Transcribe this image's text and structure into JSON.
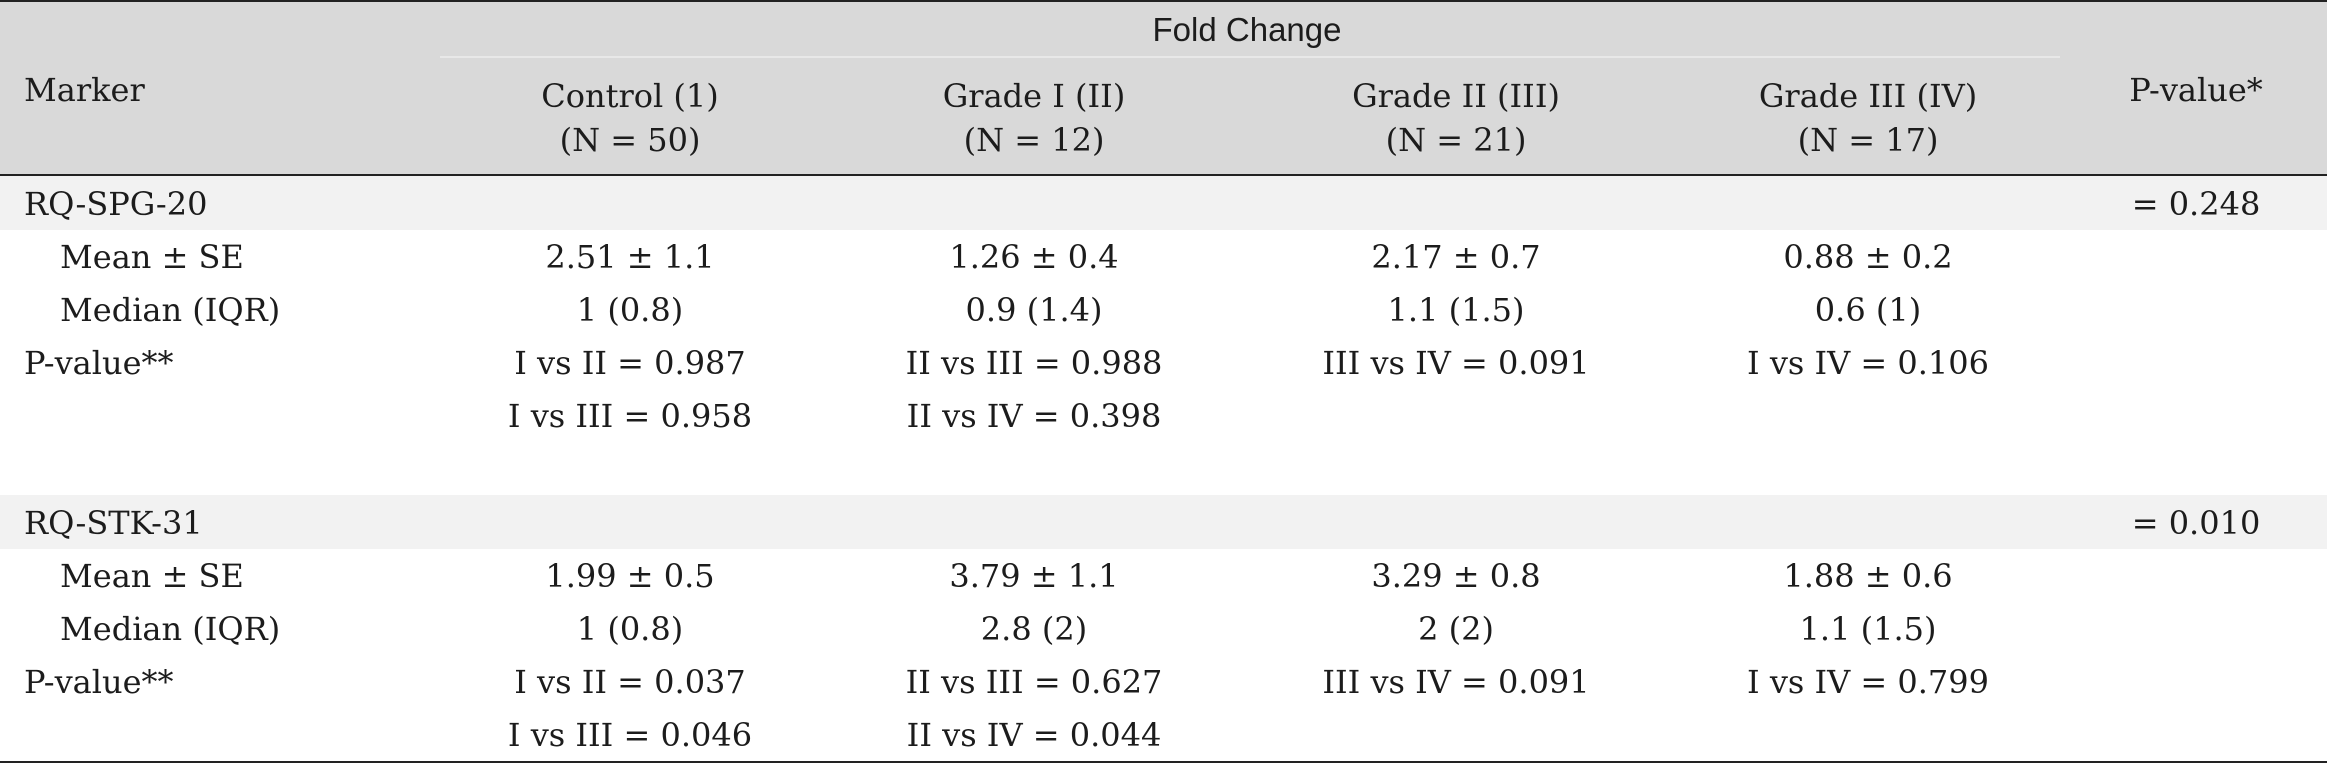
{
  "header": {
    "group": "Fold Change",
    "marker": "Marker",
    "pvalue": "P-value*",
    "columns": [
      {
        "line1": "Control (1)",
        "line2": "(N = 50)"
      },
      {
        "line1": "Grade I (II)",
        "line2": "(N = 12)"
      },
      {
        "line1": "Grade II (III)",
        "line2": "(N = 21)"
      },
      {
        "line1": "Grade III (IV)",
        "line2": "(N = 17)"
      }
    ]
  },
  "sections": [
    {
      "name": "RQ-SPG-20",
      "pvalue": "= 0.248",
      "mean_label": "Mean ± SE",
      "mean": [
        "2.51 ± 1.1",
        "1.26 ± 0.4",
        "2.17 ± 0.7",
        "0.88 ± 0.2"
      ],
      "median_label": "Median (IQR)",
      "median": [
        "1 (0.8)",
        "0.9 (1.4)",
        "1.1 (1.5)",
        "0.6 (1)"
      ],
      "pv_label": "P-value**",
      "pv_row1": [
        "I vs II = 0.987",
        "II vs III = 0.988",
        "III vs IV = 0.091",
        "I vs IV = 0.106"
      ],
      "pv_row2": [
        "I vs III = 0.958",
        "II vs IV = 0.398"
      ]
    },
    {
      "name": "RQ-STK-31",
      "pvalue": "= 0.010",
      "mean_label": "Mean ± SE",
      "mean": [
        "1.99 ± 0.5",
        "3.79 ± 1.1",
        "3.29 ± 0.8",
        "1.88 ± 0.6"
      ],
      "median_label": "Median (IQR)",
      "median": [
        "1 (0.8)",
        "2.8 (2)",
        "2 (2)",
        "1.1 (1.5)"
      ],
      "pv_label": "P-value**",
      "pv_row1": [
        "I vs II = 0.037",
        "II vs III = 0.627",
        "III vs IV = 0.091",
        "I vs IV = 0.799"
      ],
      "pv_row2": [
        "I vs III = 0.046",
        "II vs IV = 0.044"
      ]
    }
  ]
}
